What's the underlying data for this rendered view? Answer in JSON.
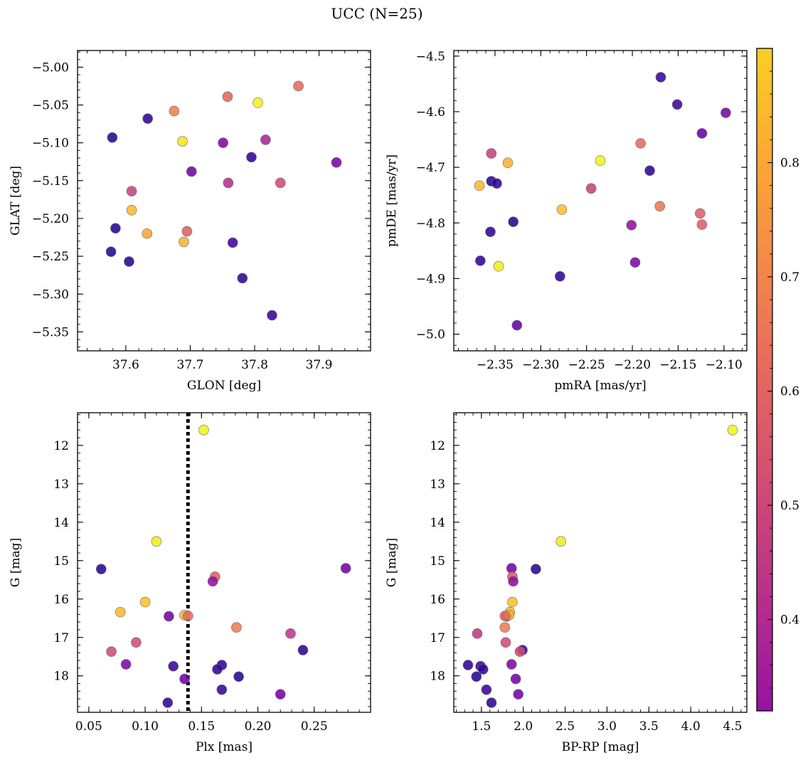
{
  "figure": {
    "title": "UCC (N=25)",
    "colorbar": {
      "min": 0.32,
      "max": 0.9,
      "ticks": [
        0.4,
        0.5,
        0.6,
        0.7,
        0.8
      ],
      "tick_labels": [
        "0.4",
        "0.5",
        "0.6",
        "0.7",
        "0.8"
      ],
      "colormap": "plasma"
    }
  },
  "chart_data": [
    {
      "type": "scatter",
      "xlabel": "GLON [deg]",
      "ylabel": "GLAT [deg]",
      "xlim": [
        37.525,
        37.98
      ],
      "ylim": [
        -5.375,
        -4.978
      ],
      "y_inverted": false,
      "xticks": [
        37.6,
        37.7,
        37.8,
        37.9
      ],
      "xtick_labels": [
        "37.6",
        "37.7",
        "37.8",
        "37.9"
      ],
      "yticks": [
        -5.0,
        -5.05,
        -5.1,
        -5.15,
        -5.2,
        -5.25,
        -5.3,
        -5.35
      ],
      "ytick_labels": [
        "−5.00",
        "−5.05",
        "−5.10",
        "−5.15",
        "−5.20",
        "−5.25",
        "−5.30",
        "−5.35"
      ],
      "points": [
        {
          "x": 37.868,
          "y": -5.025,
          "c": 0.68
        },
        {
          "x": 37.805,
          "y": -5.047,
          "c": 0.89
        },
        {
          "x": 37.758,
          "y": -5.039,
          "c": 0.67
        },
        {
          "x": 37.675,
          "y": -5.058,
          "c": 0.72
        },
        {
          "x": 37.634,
          "y": -5.068,
          "c": 0.36
        },
        {
          "x": 37.579,
          "y": -5.093,
          "c": 0.35
        },
        {
          "x": 37.688,
          "y": -5.098,
          "c": 0.87
        },
        {
          "x": 37.751,
          "y": -5.1,
          "c": 0.47
        },
        {
          "x": 37.817,
          "y": -5.096,
          "c": 0.54
        },
        {
          "x": 37.795,
          "y": -5.119,
          "c": 0.36
        },
        {
          "x": 37.927,
          "y": -5.126,
          "c": 0.46
        },
        {
          "x": 37.702,
          "y": -5.138,
          "c": 0.45
        },
        {
          "x": 37.759,
          "y": -5.153,
          "c": 0.56
        },
        {
          "x": 37.84,
          "y": -5.153,
          "c": 0.62
        },
        {
          "x": 37.609,
          "y": -5.164,
          "c": 0.6
        },
        {
          "x": 37.609,
          "y": -5.189,
          "c": 0.81
        },
        {
          "x": 37.584,
          "y": -5.213,
          "c": 0.35
        },
        {
          "x": 37.633,
          "y": -5.22,
          "c": 0.78
        },
        {
          "x": 37.695,
          "y": -5.217,
          "c": 0.66
        },
        {
          "x": 37.69,
          "y": -5.231,
          "c": 0.8
        },
        {
          "x": 37.766,
          "y": -5.232,
          "c": 0.38
        },
        {
          "x": 37.577,
          "y": -5.244,
          "c": 0.35
        },
        {
          "x": 37.605,
          "y": -5.257,
          "c": 0.35
        },
        {
          "x": 37.781,
          "y": -5.279,
          "c": 0.36
        },
        {
          "x": 37.827,
          "y": -5.328,
          "c": 0.37
        }
      ]
    },
    {
      "type": "scatter",
      "xlabel": "pmRA [mas/yr]",
      "ylabel": "pmDE [mas/yr]",
      "xlim": [
        -2.395,
        -2.075
      ],
      "ylim": [
        -5.03,
        -4.49
      ],
      "y_inverted": false,
      "xticks": [
        -2.35,
        -2.3,
        -2.25,
        -2.2,
        -2.15,
        -2.1
      ],
      "xtick_labels": [
        "−2.35",
        "−2.30",
        "−2.25",
        "−2.20",
        "−2.15",
        "−2.10"
      ],
      "yticks": [
        -4.5,
        -4.6,
        -4.7,
        -4.8,
        -4.9,
        -5.0
      ],
      "ytick_labels": [
        "−4.5",
        "−4.6",
        "−4.7",
        "−4.8",
        "−4.9",
        "−5.0"
      ],
      "points": [
        {
          "x": -2.169,
          "y": -4.538,
          "c": 0.37
        },
        {
          "x": -2.151,
          "y": -4.587,
          "c": 0.38
        },
        {
          "x": -2.098,
          "y": -4.602,
          "c": 0.46
        },
        {
          "x": -2.124,
          "y": -4.639,
          "c": 0.43
        },
        {
          "x": -2.191,
          "y": -4.657,
          "c": 0.68
        },
        {
          "x": -2.354,
          "y": -4.675,
          "c": 0.6
        },
        {
          "x": -2.235,
          "y": -4.688,
          "c": 0.89
        },
        {
          "x": -2.336,
          "y": -4.692,
          "c": 0.8
        },
        {
          "x": -2.181,
          "y": -4.706,
          "c": 0.36
        },
        {
          "x": -2.354,
          "y": -4.725,
          "c": 0.35
        },
        {
          "x": -2.348,
          "y": -4.729,
          "c": 0.36
        },
        {
          "x": -2.367,
          "y": -4.733,
          "c": 0.81
        },
        {
          "x": -2.245,
          "y": -4.738,
          "c": 0.6
        },
        {
          "x": -2.17,
          "y": -4.77,
          "c": 0.7
        },
        {
          "x": -2.277,
          "y": -4.776,
          "c": 0.82
        },
        {
          "x": -2.126,
          "y": -4.783,
          "c": 0.66
        },
        {
          "x": -2.33,
          "y": -4.798,
          "c": 0.35
        },
        {
          "x": -2.124,
          "y": -4.803,
          "c": 0.66
        },
        {
          "x": -2.201,
          "y": -4.804,
          "c": 0.5
        },
        {
          "x": -2.355,
          "y": -4.816,
          "c": 0.36
        },
        {
          "x": -2.366,
          "y": -4.868,
          "c": 0.36
        },
        {
          "x": -2.197,
          "y": -4.871,
          "c": 0.47
        },
        {
          "x": -2.346,
          "y": -4.878,
          "c": 0.88
        },
        {
          "x": -2.279,
          "y": -4.896,
          "c": 0.36
        },
        {
          "x": -2.326,
          "y": -4.984,
          "c": 0.43
        }
      ]
    },
    {
      "type": "scatter",
      "xlabel": "Plx [mas]",
      "ylabel": "G [mag]",
      "xlim": [
        0.04,
        0.3
      ],
      "ylim": [
        18.95,
        11.15
      ],
      "y_inverted": true,
      "xticks": [
        0.05,
        0.1,
        0.15,
        0.2,
        0.25
      ],
      "xtick_labels": [
        "0.05",
        "0.10",
        "0.15",
        "0.20",
        "0.25"
      ],
      "yticks": [
        12,
        13,
        14,
        15,
        16,
        17,
        18
      ],
      "ytick_labels": [
        "12",
        "13",
        "14",
        "15",
        "16",
        "17",
        "18"
      ],
      "vline": 0.138,
      "points": [
        {
          "x": 0.152,
          "y": 11.6,
          "c": 0.89
        },
        {
          "x": 0.11,
          "y": 14.5,
          "c": 0.88
        },
        {
          "x": 0.061,
          "y": 15.22,
          "c": 0.35
        },
        {
          "x": 0.278,
          "y": 15.2,
          "c": 0.45
        },
        {
          "x": 0.162,
          "y": 15.42,
          "c": 0.66
        },
        {
          "x": 0.16,
          "y": 15.54,
          "c": 0.5
        },
        {
          "x": 0.1,
          "y": 16.08,
          "c": 0.82
        },
        {
          "x": 0.078,
          "y": 16.34,
          "c": 0.81
        },
        {
          "x": 0.121,
          "y": 16.45,
          "c": 0.45
        },
        {
          "x": 0.135,
          "y": 16.42,
          "c": 0.8
        },
        {
          "x": 0.138,
          "y": 16.44,
          "c": 0.68
        },
        {
          "x": 0.181,
          "y": 16.74,
          "c": 0.71
        },
        {
          "x": 0.229,
          "y": 16.9,
          "c": 0.58
        },
        {
          "x": 0.092,
          "y": 17.13,
          "c": 0.62
        },
        {
          "x": 0.24,
          "y": 17.33,
          "c": 0.36
        },
        {
          "x": 0.07,
          "y": 17.37,
          "c": 0.62
        },
        {
          "x": 0.083,
          "y": 17.7,
          "c": 0.47
        },
        {
          "x": 0.168,
          "y": 17.72,
          "c": 0.36
        },
        {
          "x": 0.125,
          "y": 17.75,
          "c": 0.37
        },
        {
          "x": 0.164,
          "y": 17.83,
          "c": 0.36
        },
        {
          "x": 0.183,
          "y": 18.02,
          "c": 0.35
        },
        {
          "x": 0.135,
          "y": 18.08,
          "c": 0.45
        },
        {
          "x": 0.168,
          "y": 18.36,
          "c": 0.37
        },
        {
          "x": 0.22,
          "y": 18.48,
          "c": 0.45
        },
        {
          "x": 0.12,
          "y": 18.7,
          "c": 0.36
        }
      ]
    },
    {
      "type": "scatter",
      "xlabel": "BP-RP [mag]",
      "ylabel": "G [mag]",
      "xlim": [
        1.17,
        4.67
      ],
      "ylim": [
        18.95,
        11.15
      ],
      "y_inverted": true,
      "xticks": [
        1.5,
        2.0,
        2.5,
        3.0,
        3.5,
        4.0,
        4.5
      ],
      "xtick_labels": [
        "1.5",
        "2.0",
        "2.5",
        "3.0",
        "3.5",
        "4.0",
        "4.5"
      ],
      "yticks": [
        12,
        13,
        14,
        15,
        16,
        17,
        18
      ],
      "ytick_labels": [
        "12",
        "13",
        "14",
        "15",
        "16",
        "17",
        "18"
      ],
      "points": [
        {
          "x": 4.5,
          "y": 11.6,
          "c": 0.89
        },
        {
          "x": 2.45,
          "y": 14.5,
          "c": 0.88
        },
        {
          "x": 2.15,
          "y": 15.22,
          "c": 0.35
        },
        {
          "x": 1.86,
          "y": 15.2,
          "c": 0.45
        },
        {
          "x": 1.87,
          "y": 15.42,
          "c": 0.66
        },
        {
          "x": 1.88,
          "y": 15.54,
          "c": 0.5
        },
        {
          "x": 1.87,
          "y": 16.08,
          "c": 0.82
        },
        {
          "x": 1.84,
          "y": 16.34,
          "c": 0.81
        },
        {
          "x": 1.8,
          "y": 16.45,
          "c": 0.45
        },
        {
          "x": 1.83,
          "y": 16.42,
          "c": 0.8
        },
        {
          "x": 1.78,
          "y": 16.44,
          "c": 0.68
        },
        {
          "x": 1.78,
          "y": 16.74,
          "c": 0.71
        },
        {
          "x": 1.45,
          "y": 16.9,
          "c": 0.58
        },
        {
          "x": 1.79,
          "y": 17.13,
          "c": 0.62
        },
        {
          "x": 1.99,
          "y": 17.33,
          "c": 0.36
        },
        {
          "x": 1.96,
          "y": 17.37,
          "c": 0.62
        },
        {
          "x": 1.86,
          "y": 17.7,
          "c": 0.47
        },
        {
          "x": 1.34,
          "y": 17.72,
          "c": 0.36
        },
        {
          "x": 1.49,
          "y": 17.75,
          "c": 0.37
        },
        {
          "x": 1.52,
          "y": 17.83,
          "c": 0.36
        },
        {
          "x": 1.44,
          "y": 18.02,
          "c": 0.35
        },
        {
          "x": 1.91,
          "y": 18.08,
          "c": 0.45
        },
        {
          "x": 1.56,
          "y": 18.36,
          "c": 0.37
        },
        {
          "x": 1.94,
          "y": 18.48,
          "c": 0.45
        },
        {
          "x": 1.62,
          "y": 18.7,
          "c": 0.36
        }
      ]
    }
  ]
}
